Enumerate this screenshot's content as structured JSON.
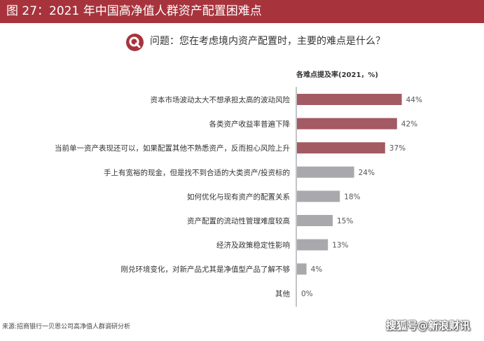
{
  "header": {
    "title": "图 27：2021 年中国高净值人群资产配置困难点"
  },
  "question": {
    "text": "问题：您在考虑境内资产配置时，主要的难点是什么？"
  },
  "source": {
    "text": "来源:招商银行一贝恩公司高净值人群调研分析"
  },
  "watermark": {
    "text": "搜狐号@新浪财讯"
  },
  "colors": {
    "accent": "#a7343c",
    "highlight_bar": "#a35a63",
    "normal_bar": "#a9a9ad"
  },
  "chart_data": {
    "type": "bar",
    "orientation": "horizontal",
    "title": "",
    "ylabel": "各难点提及率(2021，%)",
    "categories": [
      "资本市场波动太大不想承担太高的波动风险",
      "各类资产收益率普遍下降",
      "当前单一资产表现还可以，如果配置其他不熟悉资产，反而担心风险上升",
      "手上有宽裕的现金，但是找不到合适的大类资产/投资标的",
      "如何优化与现有资产的配置关系",
      "资产配置的流动性管理难度较高",
      "经济及政策稳定性影响",
      "刚兑环境变化，对新产品尤其是净值型产品了解不够",
      "其他"
    ],
    "values": [
      44,
      42,
      37,
      24,
      18,
      15,
      13,
      4,
      0
    ],
    "value_labels": [
      "44%",
      "42%",
      "37%",
      "24%",
      "18%",
      "15%",
      "13%",
      "4%",
      "0%"
    ],
    "highlighted_count": 3,
    "xlim": [
      0,
      50
    ],
    "grid": false,
    "legend": "none"
  }
}
